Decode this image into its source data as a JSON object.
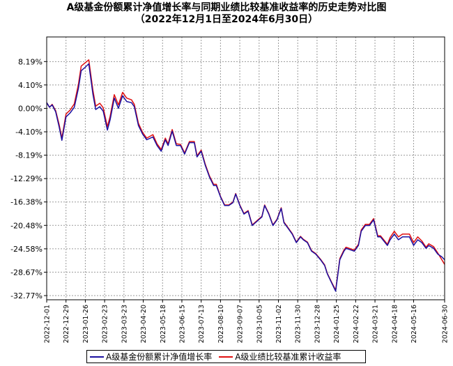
{
  "chart_data": {
    "type": "line",
    "title": "A级基金份额累计净值增长率与同期业绩比较基准收益率的历史走势对比图",
    "subtitle": "（2022年12月1日至2024年6月30日）",
    "xlabel": "",
    "ylabel": "",
    "ylim": [
      -33.5,
      12.5
    ],
    "y_ticks": [
      "8.19%",
      "4.10%",
      "0.00%",
      "-4.10%",
      "-8.19%",
      "-12.29%",
      "-16.38%",
      "-20.48%",
      "-24.58%",
      "-28.67%",
      "-32.77%"
    ],
    "y_tick_values": [
      8.19,
      4.1,
      0.0,
      -4.1,
      -8.19,
      -12.29,
      -16.38,
      -20.48,
      -24.58,
      -28.67,
      -32.77
    ],
    "x_ticks": [
      "2022-12-01",
      "2022-12-29",
      "2023-01-26",
      "2023-02-23",
      "2023-03-23",
      "2023-04-20",
      "2023-05-18",
      "2023-06-15",
      "2023-07-13",
      "2023-08-10",
      "2023-09-07",
      "2023-10-05",
      "2023-11-02",
      "2023-11-30",
      "2023-12-28",
      "2024-01-25",
      "2024-02-22",
      "2024-03-21",
      "2024-04-18",
      "2024-05-16",
      "2024-06-30"
    ],
    "grid": true,
    "legend_position": "bottom",
    "series": [
      {
        "name": "A级基金份额累计净值增长率",
        "color": "#1a0fa0",
        "x": [
          "2022-12-01",
          "2022-12-05",
          "2022-12-09",
          "2022-12-14",
          "2022-12-19",
          "2022-12-23",
          "2022-12-29",
          "2023-01-04",
          "2023-01-10",
          "2023-01-16",
          "2023-01-20",
          "2023-01-26",
          "2023-01-31",
          "2023-02-06",
          "2023-02-10",
          "2023-02-16",
          "2023-02-21",
          "2023-02-27",
          "2023-03-03",
          "2023-03-09",
          "2023-03-15",
          "2023-03-21",
          "2023-03-27",
          "2023-04-03",
          "2023-04-07",
          "2023-04-13",
          "2023-04-19",
          "2023-04-25",
          "2023-05-04",
          "2023-05-10",
          "2023-05-16",
          "2023-05-22",
          "2023-05-26",
          "2023-06-01",
          "2023-06-07",
          "2023-06-13",
          "2023-06-19",
          "2023-06-26",
          "2023-07-03",
          "2023-07-07",
          "2023-07-13",
          "2023-07-19",
          "2023-07-25",
          "2023-07-31",
          "2023-08-04",
          "2023-08-10",
          "2023-08-16",
          "2023-08-22",
          "2023-08-28",
          "2023-09-01",
          "2023-09-07",
          "2023-09-13",
          "2023-09-19",
          "2023-09-25",
          "2023-10-09",
          "2023-10-13",
          "2023-10-19",
          "2023-10-25",
          "2023-10-31",
          "2023-11-06",
          "2023-11-10",
          "2023-11-16",
          "2023-11-22",
          "2023-11-28",
          "2023-12-04",
          "2023-12-08",
          "2023-12-14",
          "2023-12-20",
          "2023-12-26",
          "2024-01-02",
          "2024-01-08",
          "2024-01-12",
          "2024-01-18",
          "2024-01-24",
          "2024-01-30",
          "2024-02-05",
          "2024-02-08",
          "2024-02-20",
          "2024-02-26",
          "2024-03-01",
          "2024-03-07",
          "2024-03-13",
          "2024-03-19",
          "2024-03-25",
          "2024-03-29",
          "2024-04-08",
          "2024-04-12",
          "2024-04-18",
          "2024-04-24",
          "2024-04-30",
          "2024-05-10",
          "2024-05-16",
          "2024-05-22",
          "2024-05-28",
          "2024-06-03",
          "2024-06-07",
          "2024-06-14",
          "2024-06-20",
          "2024-06-26",
          "2024-06-30"
        ],
        "values": [
          1.0,
          0.2,
          0.6,
          -0.6,
          -3.2,
          -5.6,
          -1.5,
          -0.8,
          0.2,
          3.5,
          6.6,
          7.2,
          7.8,
          2.5,
          -0.2,
          0.3,
          -0.5,
          -3.8,
          -2.0,
          1.8,
          0.0,
          2.2,
          1.2,
          1.0,
          0.3,
          -3.0,
          -4.5,
          -5.5,
          -5.0,
          -6.5,
          -7.5,
          -5.5,
          -6.5,
          -4.0,
          -6.5,
          -6.5,
          -8.0,
          -6.0,
          -6.0,
          -8.5,
          -7.5,
          -10.0,
          -12.0,
          -13.5,
          -13.5,
          -15.5,
          -17.0,
          -17.0,
          -16.5,
          -15.0,
          -17.0,
          -18.5,
          -18.0,
          -20.5,
          -19.0,
          -17.0,
          -18.5,
          -20.5,
          -19.5,
          -17.5,
          -20.0,
          -21.0,
          -22.0,
          -23.5,
          -22.5,
          -23.0,
          -23.5,
          -25.0,
          -25.5,
          -26.5,
          -27.5,
          -29.0,
          -30.5,
          -32.0,
          -26.5,
          -25.0,
          -24.5,
          -25.0,
          -24.0,
          -21.5,
          -20.5,
          -20.5,
          -19.5,
          -22.5,
          -22.5,
          -24.0,
          -23.0,
          -22.0,
          -23.0,
          -22.5,
          -22.5,
          -24.0,
          -23.0,
          -23.5,
          -24.5,
          -24.0,
          -24.5,
          -25.5,
          -26.0,
          -26.5
        ]
      },
      {
        "name": "A级业绩比较基准累计收益率",
        "color": "#e01010",
        "x": [
          "2022-12-01",
          "2022-12-05",
          "2022-12-09",
          "2022-12-14",
          "2022-12-19",
          "2022-12-23",
          "2022-12-29",
          "2023-01-04",
          "2023-01-10",
          "2023-01-16",
          "2023-01-20",
          "2023-01-26",
          "2023-01-31",
          "2023-02-06",
          "2023-02-10",
          "2023-02-16",
          "2023-02-21",
          "2023-02-27",
          "2023-03-03",
          "2023-03-09",
          "2023-03-15",
          "2023-03-21",
          "2023-03-27",
          "2023-04-03",
          "2023-04-07",
          "2023-04-13",
          "2023-04-19",
          "2023-04-25",
          "2023-05-04",
          "2023-05-10",
          "2023-05-16",
          "2023-05-22",
          "2023-05-26",
          "2023-06-01",
          "2023-06-07",
          "2023-06-13",
          "2023-06-19",
          "2023-06-26",
          "2023-07-03",
          "2023-07-07",
          "2023-07-13",
          "2023-07-19",
          "2023-07-25",
          "2023-07-31",
          "2023-08-04",
          "2023-08-10",
          "2023-08-16",
          "2023-08-22",
          "2023-08-28",
          "2023-09-01",
          "2023-09-07",
          "2023-09-13",
          "2023-09-19",
          "2023-09-25",
          "2023-10-09",
          "2023-10-13",
          "2023-10-19",
          "2023-10-25",
          "2023-10-31",
          "2023-11-06",
          "2023-11-10",
          "2023-11-16",
          "2023-11-22",
          "2023-11-28",
          "2023-12-04",
          "2023-12-08",
          "2023-12-14",
          "2023-12-20",
          "2023-12-26",
          "2024-01-02",
          "2024-01-08",
          "2024-01-12",
          "2024-01-18",
          "2024-01-24",
          "2024-01-30",
          "2024-02-05",
          "2024-02-08",
          "2024-02-20",
          "2024-02-26",
          "2024-03-01",
          "2024-03-07",
          "2024-03-13",
          "2024-03-19",
          "2024-03-25",
          "2024-03-29",
          "2024-04-08",
          "2024-04-12",
          "2024-04-18",
          "2024-04-24",
          "2024-04-30",
          "2024-05-10",
          "2024-05-16",
          "2024-05-22",
          "2024-05-28",
          "2024-06-03",
          "2024-06-07",
          "2024-06-14",
          "2024-06-20",
          "2024-06-26",
          "2024-06-30"
        ],
        "values": [
          1.0,
          0.2,
          0.7,
          -0.4,
          -2.8,
          -5.2,
          -1.0,
          -0.3,
          0.8,
          4.2,
          7.4,
          8.0,
          8.5,
          3.2,
          0.4,
          0.9,
          0.1,
          -3.2,
          -1.4,
          2.4,
          0.6,
          2.8,
          1.8,
          1.5,
          0.7,
          -2.6,
          -4.2,
          -5.2,
          -4.6,
          -6.2,
          -7.2,
          -5.2,
          -6.2,
          -3.7,
          -6.2,
          -6.3,
          -7.8,
          -5.8,
          -5.8,
          -8.3,
          -7.3,
          -9.8,
          -11.8,
          -13.3,
          -13.3,
          -15.4,
          -16.9,
          -16.9,
          -16.4,
          -14.9,
          -16.9,
          -18.4,
          -17.9,
          -20.4,
          -18.9,
          -16.9,
          -18.4,
          -20.4,
          -19.4,
          -17.4,
          -19.9,
          -20.9,
          -21.9,
          -23.4,
          -22.4,
          -22.9,
          -23.4,
          -24.9,
          -25.4,
          -26.4,
          -27.4,
          -28.9,
          -30.4,
          -31.8,
          -26.3,
          -24.8,
          -24.3,
          -24.8,
          -23.8,
          -21.3,
          -20.3,
          -20.3,
          -19.3,
          -22.3,
          -22.3,
          -23.8,
          -22.6,
          -21.5,
          -22.5,
          -22.0,
          -22.0,
          -23.5,
          -22.5,
          -23.2,
          -24.3,
          -23.7,
          -24.2,
          -25.3,
          -26.5,
          -27.3
        ]
      }
    ]
  }
}
